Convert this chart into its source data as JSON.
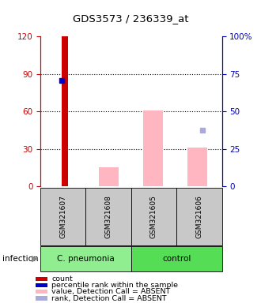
{
  "title": "GDS3573 / 236339_at",
  "samples": [
    "GSM321607",
    "GSM321608",
    "GSM321605",
    "GSM321606"
  ],
  "ylim_left": [
    0,
    120
  ],
  "ylim_right": [
    0,
    100
  ],
  "yticks_left": [
    0,
    30,
    60,
    90,
    120
  ],
  "yticks_right": [
    0,
    25,
    50,
    75,
    100
  ],
  "ytick_labels_right": [
    "0",
    "25",
    "50",
    "75",
    "100%"
  ],
  "count_bars": [
    120,
    0,
    0,
    0
  ],
  "count_color": "#CC0000",
  "value_absent_bars": [
    0,
    15,
    61,
    31
  ],
  "value_absent_color": "#FFB6C1",
  "percentile_rank_val": [
    85,
    0,
    0,
    0
  ],
  "percentile_rank_color": "#0000CC",
  "rank_absent_val": [
    0,
    0,
    0,
    45
  ],
  "rank_absent_color": "#AAAADD",
  "dotted_grid": [
    30,
    60,
    90
  ],
  "sample_box_color": "#C8C8C8",
  "group1_color": "#90EE90",
  "group2_color": "#55DD55",
  "left_axis_color": "#CC0000",
  "right_axis_color": "#0000BB",
  "legend_items": [
    {
      "color": "#CC0000",
      "label": "count"
    },
    {
      "color": "#0000CC",
      "label": "percentile rank within the sample"
    },
    {
      "color": "#FFB6C1",
      "label": "value, Detection Call = ABSENT"
    },
    {
      "color": "#AAAADD",
      "label": "rank, Detection Call = ABSENT"
    }
  ]
}
